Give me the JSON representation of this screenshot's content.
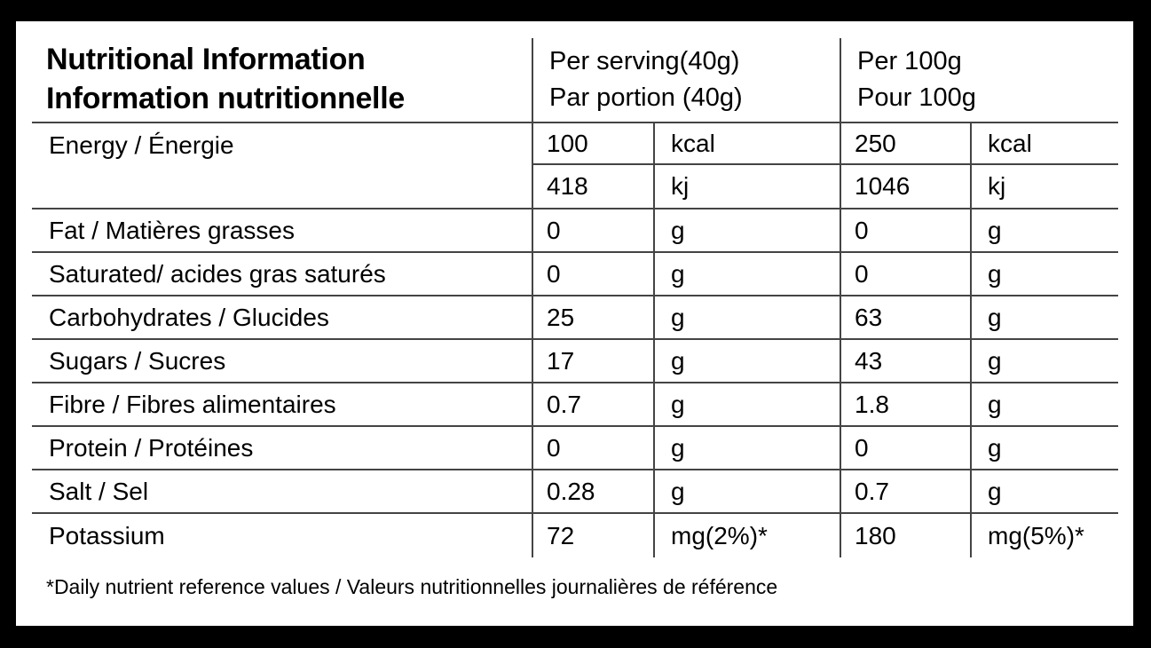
{
  "frame": {
    "background_color": "#000000",
    "panel_color": "#ffffff",
    "line_color": "#444444",
    "text_color": "#000000"
  },
  "header": {
    "title_line1": "Nutritional Information",
    "title_line2": "Information nutritionnelle",
    "per_serving_line1": "Per serving(40g)",
    "per_serving_line2": "Par portion (40g)",
    "per_100g_line1": "Per 100g",
    "per_100g_line2": "Pour 100g"
  },
  "rows": [
    {
      "label": "Energy / Énergie",
      "sub": [
        {
          "serving_value": "100",
          "serving_unit": "kcal",
          "per100_value": "250",
          "per100_unit": "kcal"
        },
        {
          "serving_value": "418",
          "serving_unit": "kj",
          "per100_value": "1046",
          "per100_unit": "kj"
        }
      ]
    },
    {
      "label": "Fat / Matières grasses",
      "serving_value": "0",
      "serving_unit": "g",
      "per100_value": "0",
      "per100_unit": "g"
    },
    {
      "label": "Saturated/ acides gras saturés",
      "serving_value": "0",
      "serving_unit": "g",
      "per100_value": "0",
      "per100_unit": "g"
    },
    {
      "label": "Carbohydrates / Glucides",
      "serving_value": "25",
      "serving_unit": "g",
      "per100_value": "63",
      "per100_unit": "g"
    },
    {
      "label": "Sugars / Sucres",
      "serving_value": "17",
      "serving_unit": "g",
      "per100_value": "43",
      "per100_unit": "g"
    },
    {
      "label": "Fibre / Fibres alimentaires",
      "serving_value": "0.7",
      "serving_unit": "g",
      "per100_value": "1.8",
      "per100_unit": "g"
    },
    {
      "label": "Protein / Protéines",
      "serving_value": "0",
      "serving_unit": "g",
      "per100_value": "0",
      "per100_unit": "g"
    },
    {
      "label": "Salt / Sel",
      "serving_value": "0.28",
      "serving_unit": "g",
      "per100_value": "0.7",
      "per100_unit": "g"
    },
    {
      "label": "Potassium",
      "serving_value": "72",
      "serving_unit": "mg(2%)*",
      "per100_value": "180",
      "per100_unit": "mg(5%)*"
    }
  ],
  "footnote": "*Daily nutrient reference values / Valeurs nutritionnelles journalières de référence"
}
